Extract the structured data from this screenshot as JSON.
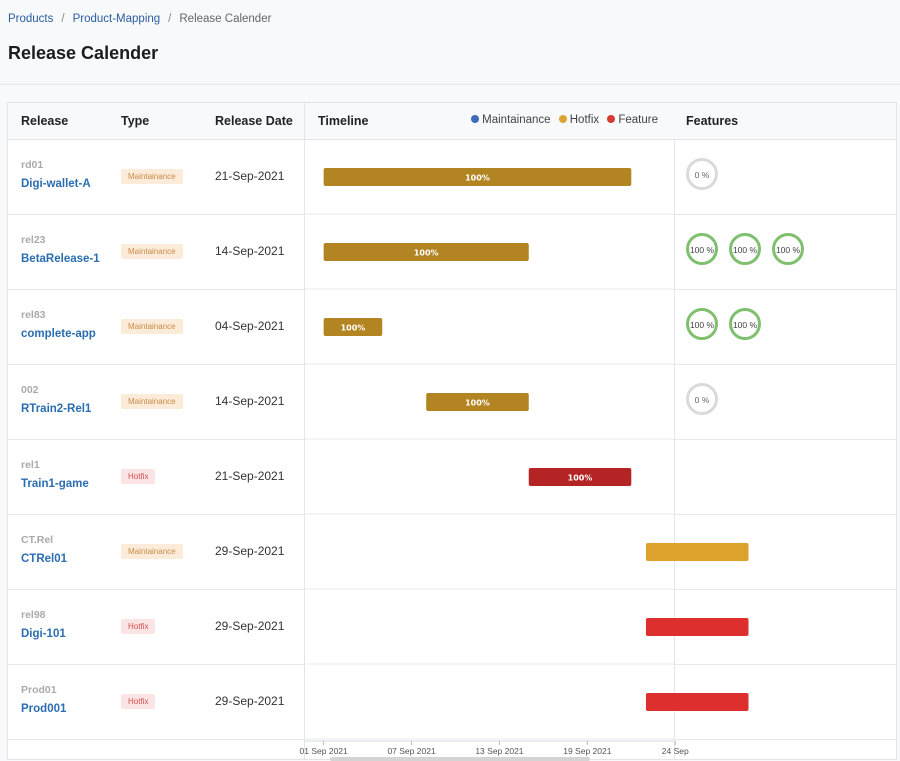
{
  "breadcrumb": {
    "items": [
      "Products",
      "Product-Mapping",
      "Release Calender"
    ],
    "separator": "/"
  },
  "page": {
    "title": "Release Calender"
  },
  "table": {
    "headers": {
      "release": "Release",
      "type": "Type",
      "date": "Release Date",
      "timeline": "Timeline",
      "features": "Features"
    },
    "legend": [
      {
        "label": "Maintainance",
        "color": "#3e6cb8"
      },
      {
        "label": "Hotfix",
        "color": "#d9a530"
      },
      {
        "label": "Feature",
        "color": "#d33b33"
      }
    ],
    "rows": [
      {
        "code": "rd01",
        "name": "Digi-wallet-A",
        "type": "Maintainance",
        "date": "21-Sep-2021",
        "features": [
          "0 %"
        ]
      },
      {
        "code": "rel23",
        "name": "BetaRelease-1",
        "type": "Maintainance",
        "date": "14-Sep-2021",
        "features": [
          "100 %",
          "100 %",
          "100 %"
        ]
      },
      {
        "code": "rel83",
        "name": "complete-app",
        "type": "Maintainance",
        "date": "04-Sep-2021",
        "features": [
          "100 %",
          "100 %"
        ]
      },
      {
        "code": "002",
        "name": "RTrain2-Rel1",
        "type": "Maintainance",
        "date": "14-Sep-2021",
        "features": [
          "0 %"
        ]
      },
      {
        "code": "rel1",
        "name": "Train1-game",
        "type": "Hotfix",
        "date": "21-Sep-2021",
        "features": []
      },
      {
        "code": "CT.Rel",
        "name": "CTRel01",
        "type": "Maintainance",
        "date": "29-Sep-2021",
        "features": []
      },
      {
        "code": "rel98",
        "name": "Digi-101",
        "type": "Hotfix",
        "date": "29-Sep-2021",
        "features": []
      },
      {
        "code": "Prod01",
        "name": "Prod001",
        "type": "Hotfix",
        "date": "29-Sep-2021",
        "features": []
      }
    ]
  },
  "chart_data": {
    "type": "gantt",
    "x_ticks": [
      "01 Sep 2021",
      "07 Sep 2021",
      "13 Sep 2021",
      "19 Sep 2021",
      "24 Sep"
    ],
    "colors": {
      "gold": "#b38422",
      "red": "#b52424",
      "amber": "#dca22b",
      "brightred": "#de2f2f"
    },
    "bars": [
      {
        "row": 0,
        "start": "2021-09-01",
        "end": "2021-09-22",
        "label": "100%",
        "color": "#b38422"
      },
      {
        "row": 1,
        "start": "2021-09-01",
        "end": "2021-09-15",
        "label": "100%",
        "color": "#b38422"
      },
      {
        "row": 2,
        "start": "2021-09-01",
        "end": "2021-09-05",
        "label": "100%",
        "color": "#b38422"
      },
      {
        "row": 3,
        "start": "2021-09-08",
        "end": "2021-09-15",
        "label": "100%",
        "color": "#b38422"
      },
      {
        "row": 4,
        "start": "2021-09-15",
        "end": "2021-09-22",
        "label": "100%",
        "color": "#b52424"
      },
      {
        "row": 5,
        "start": "2021-09-23",
        "end": "2021-09-30",
        "label": "",
        "color": "#dca22b"
      },
      {
        "row": 6,
        "start": "2021-09-23",
        "end": "2021-09-30",
        "label": "",
        "color": "#de2f2f"
      },
      {
        "row": 7,
        "start": "2021-09-23",
        "end": "2021-09-30",
        "label": "",
        "color": "#de2f2f"
      }
    ]
  }
}
